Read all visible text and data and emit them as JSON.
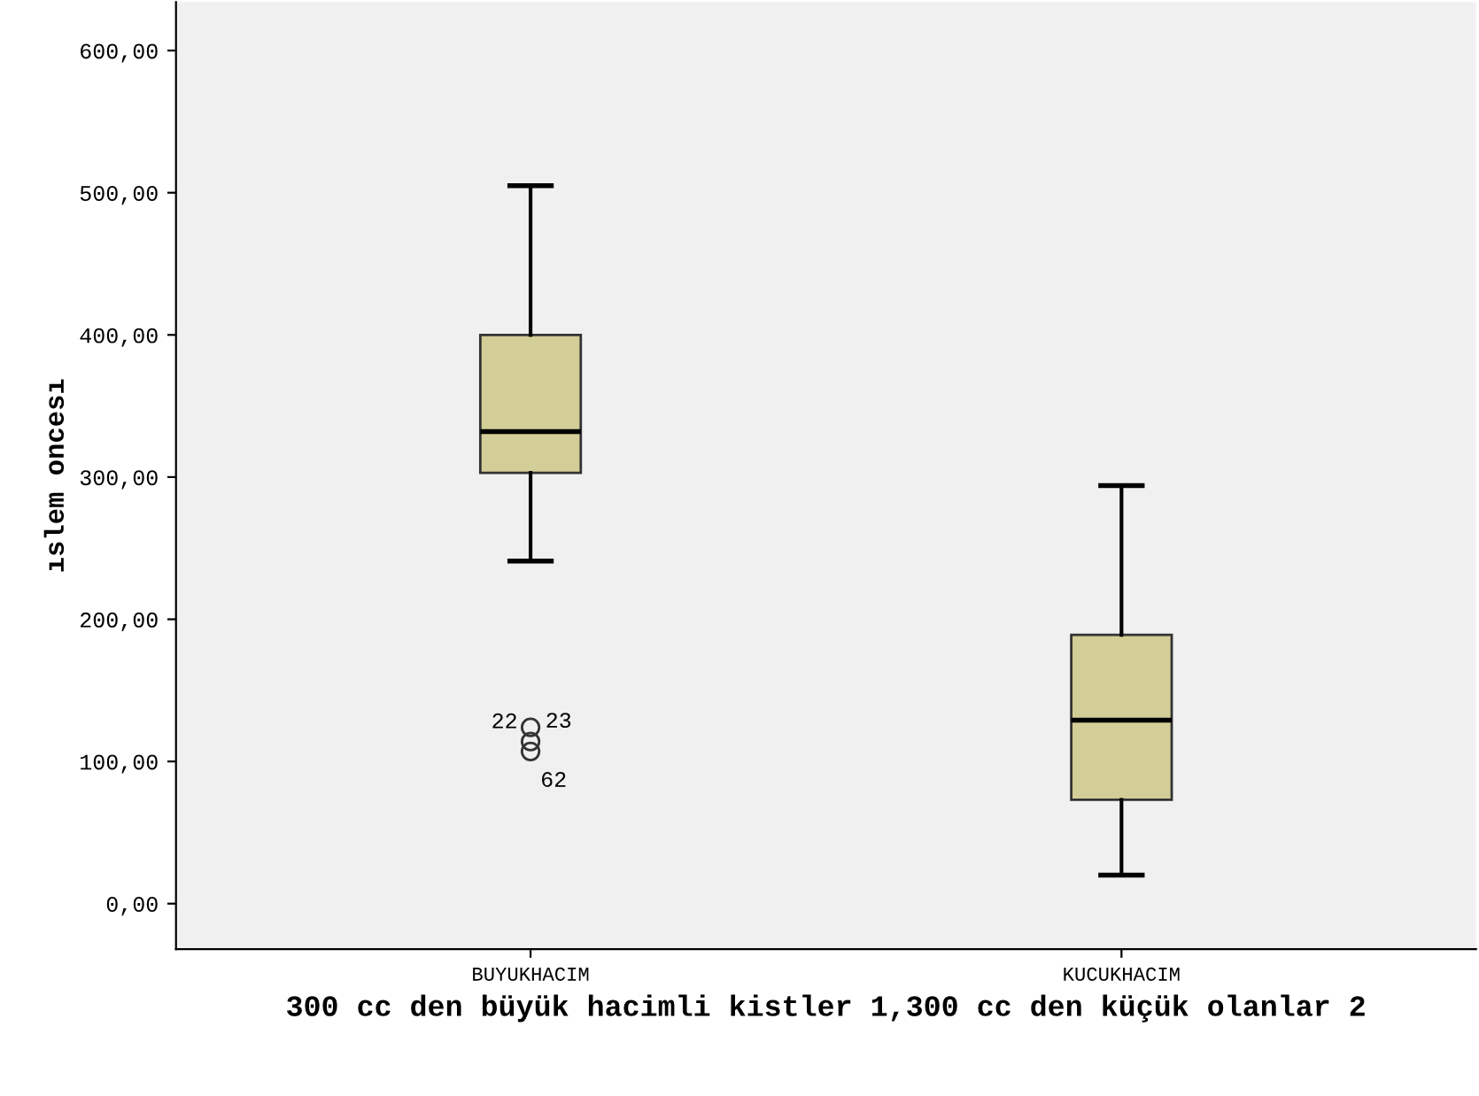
{
  "chart_data": {
    "type": "box",
    "xlabel": "300 cc den büyük hacimli kistler 1,300 cc den küçük olanlar 2",
    "ylabel": "ıslem oncesı",
    "categories": [
      "BUYUKHACIM",
      "KUCUKHACIM"
    ],
    "color": "#d3ce97",
    "boxes": [
      {
        "low": 241,
        "q1": 303,
        "median": 332,
        "q3": 400,
        "high": 505,
        "outliers": [
          124,
          114,
          107
        ]
      },
      {
        "low": 20,
        "q1": 73,
        "median": 129,
        "q3": 189,
        "high": 294
      }
    ],
    "annotations": [
      "22",
      "23",
      "62"
    ],
    "ylim": [
      -32,
      634
    ],
    "yticks": [
      {
        "value": 0,
        "label": "0,00"
      },
      {
        "value": 100,
        "label": "100,00"
      },
      {
        "value": 200,
        "label": "200,00"
      },
      {
        "value": 300,
        "label": "300,00"
      },
      {
        "value": 400,
        "label": "400,00"
      },
      {
        "value": 500,
        "label": "500,00"
      },
      {
        "value": 600,
        "label": "600,00"
      }
    ],
    "grid": false
  }
}
